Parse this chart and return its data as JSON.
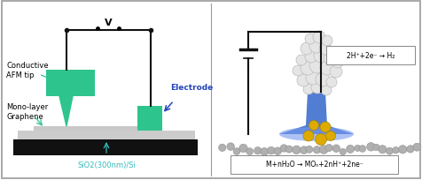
{
  "border_color": "#999999",
  "left_panel": {
    "substrate_color": "#111111",
    "sio2_color": "#cccccc",
    "graphene_color": "#c0c0c0",
    "tip_color": "#2ec48e",
    "electrode_color": "#2ec48e",
    "wire_color": "#111111",
    "v_label": "V",
    "label_conductive": "Conductive\nAFM tip",
    "label_mono": "Mono-layer\nGraphene",
    "label_sio2": "SiO2(300nm)/Si",
    "label_electrode": "Electrode",
    "arrow_blue": "#2244bb",
    "arrow_green": "#2ec48e"
  },
  "right_panel": {
    "bubble_color": "#dddddd",
    "bubble_edge": "#aaaaaa",
    "water_color": "#3366cc",
    "water_alpha": 0.85,
    "water_rim_color": "#6688dd",
    "metal_color": "#ddaa00",
    "substrate_color": "#aaaaaa",
    "circuit_color": "#111111",
    "eq1": "2H⁺+2e⁻ → H₂",
    "eq2": "M+nH₂O → MOₙ+2nH⁺+2ne⁻"
  }
}
